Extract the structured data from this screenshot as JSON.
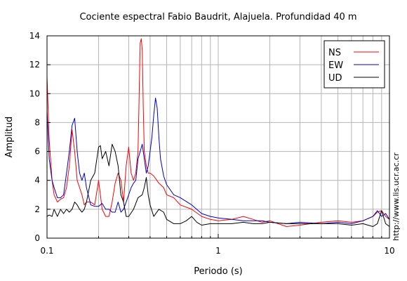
{
  "chart_data": {
    "type": "line",
    "title": "Cociente espectral Fabio Baudrit, Alajuela. Profundidad 40 m",
    "xlabel": "Periodo (s)",
    "ylabel": "Amplitud",
    "xscale": "log",
    "xlim": [
      0.1,
      10
    ],
    "ylim": [
      0,
      14
    ],
    "x_tick_labels": [
      "0.1",
      "1",
      "10"
    ],
    "y_tick_labels": [
      "0",
      "2",
      "4",
      "6",
      "8",
      "10",
      "12",
      "14"
    ],
    "grid": true,
    "legend_position": "top-right",
    "side_label": "http://www.lis.ucr.ac.cr",
    "series": [
      {
        "name": "NS",
        "color": "#ff0000",
        "x": [
          0.1,
          0.103,
          0.107,
          0.11,
          0.115,
          0.12,
          0.125,
          0.13,
          0.135,
          0.14,
          0.145,
          0.15,
          0.155,
          0.16,
          0.165,
          0.17,
          0.18,
          0.19,
          0.2,
          0.21,
          0.22,
          0.23,
          0.24,
          0.25,
          0.26,
          0.27,
          0.28,
          0.29,
          0.3,
          0.31,
          0.32,
          0.33,
          0.34,
          0.35,
          0.355,
          0.36,
          0.365,
          0.37,
          0.38,
          0.39,
          0.4,
          0.42,
          0.45,
          0.48,
          0.5,
          0.55,
          0.6,
          0.7,
          0.8,
          0.9,
          1.0,
          1.2,
          1.4,
          1.6,
          1.8,
          2.0,
          2.5,
          3.0,
          4.0,
          5.0,
          6.0,
          7.0,
          8.0,
          8.5,
          9.0,
          9.5,
          10.0
        ],
        "values": [
          11.2,
          6.8,
          4.0,
          3.0,
          2.5,
          2.7,
          2.8,
          3.5,
          5.0,
          7.5,
          6.0,
          4.0,
          3.5,
          3.0,
          2.3,
          2.5,
          2.5,
          2.3,
          4.0,
          2.0,
          1.5,
          1.5,
          2.5,
          3.8,
          4.5,
          4.0,
          2.5,
          5.0,
          6.3,
          4.5,
          4.0,
          4.5,
          6.0,
          13.5,
          13.8,
          13.0,
          9.0,
          6.0,
          5.0,
          4.5,
          4.5,
          4.3,
          3.8,
          3.5,
          3.0,
          2.8,
          2.3,
          2.0,
          1.5,
          1.3,
          1.2,
          1.3,
          1.5,
          1.3,
          1.1,
          1.2,
          0.8,
          0.9,
          1.1,
          1.2,
          1.1,
          1.2,
          1.5,
          1.8,
          1.9,
          1.5,
          1.3
        ]
      },
      {
        "name": "EW",
        "color": "#0000cc",
        "x": [
          0.1,
          0.103,
          0.107,
          0.11,
          0.115,
          0.12,
          0.125,
          0.13,
          0.135,
          0.14,
          0.145,
          0.15,
          0.155,
          0.16,
          0.165,
          0.17,
          0.18,
          0.19,
          0.2,
          0.21,
          0.22,
          0.23,
          0.24,
          0.25,
          0.26,
          0.27,
          0.28,
          0.29,
          0.3,
          0.31,
          0.32,
          0.33,
          0.34,
          0.35,
          0.36,
          0.37,
          0.38,
          0.39,
          0.4,
          0.41,
          0.42,
          0.43,
          0.44,
          0.45,
          0.46,
          0.48,
          0.5,
          0.55,
          0.6,
          0.7,
          0.8,
          0.9,
          1.0,
          1.2,
          1.4,
          1.6,
          1.8,
          2.0,
          2.5,
          3.0,
          4.0,
          5.0,
          6.0,
          7.0,
          8.0,
          8.5,
          9.0,
          9.5,
          10.0
        ],
        "values": [
          8.8,
          5.5,
          4.0,
          3.5,
          2.8,
          2.8,
          3.0,
          4.5,
          6.0,
          7.8,
          8.3,
          6.0,
          4.5,
          4.0,
          4.5,
          3.5,
          2.3,
          2.2,
          2.2,
          2.4,
          2.0,
          2.0,
          1.8,
          1.8,
          2.5,
          1.8,
          2.0,
          2.5,
          3.0,
          3.5,
          3.8,
          4.0,
          5.5,
          6.0,
          6.5,
          5.5,
          4.5,
          5.0,
          6.0,
          7.0,
          8.5,
          9.7,
          9.0,
          7.0,
          5.5,
          4.3,
          3.7,
          3.0,
          2.8,
          2.3,
          1.7,
          1.5,
          1.4,
          1.3,
          1.2,
          1.2,
          1.2,
          1.1,
          1.0,
          1.1,
          1.0,
          1.1,
          1.0,
          1.2,
          1.5,
          1.9,
          1.5,
          1.7,
          1.3
        ]
      },
      {
        "name": "UD",
        "color": "#000000",
        "x": [
          0.1,
          0.103,
          0.107,
          0.11,
          0.115,
          0.12,
          0.125,
          0.13,
          0.135,
          0.14,
          0.145,
          0.15,
          0.155,
          0.16,
          0.165,
          0.17,
          0.18,
          0.19,
          0.2,
          0.205,
          0.21,
          0.22,
          0.23,
          0.24,
          0.25,
          0.26,
          0.27,
          0.28,
          0.29,
          0.3,
          0.32,
          0.34,
          0.36,
          0.37,
          0.38,
          0.39,
          0.4,
          0.42,
          0.45,
          0.48,
          0.5,
          0.55,
          0.6,
          0.65,
          0.7,
          0.75,
          0.8,
          0.9,
          1.0,
          1.2,
          1.4,
          1.6,
          1.8,
          2.0,
          2.5,
          3.0,
          4.0,
          5.0,
          6.0,
          7.0,
          8.0,
          8.5,
          9.0,
          9.5,
          10.0
        ],
        "values": [
          1.5,
          1.6,
          1.5,
          2.0,
          1.5,
          2.0,
          1.7,
          2.0,
          1.8,
          2.0,
          2.5,
          2.3,
          2.0,
          1.8,
          2.0,
          2.5,
          4.0,
          4.5,
          6.3,
          6.4,
          5.5,
          6.0,
          5.0,
          6.5,
          6.0,
          5.0,
          3.0,
          2.5,
          1.5,
          1.5,
          2.0,
          2.8,
          3.0,
          3.5,
          4.2,
          3.0,
          2.3,
          1.5,
          2.0,
          1.8,
          1.3,
          1.0,
          1.0,
          1.2,
          1.5,
          1.1,
          0.9,
          1.0,
          1.0,
          1.0,
          1.1,
          1.0,
          1.0,
          1.1,
          1.0,
          1.0,
          1.0,
          1.0,
          0.9,
          1.0,
          0.8,
          1.0,
          1.9,
          1.0,
          0.8
        ]
      }
    ]
  }
}
